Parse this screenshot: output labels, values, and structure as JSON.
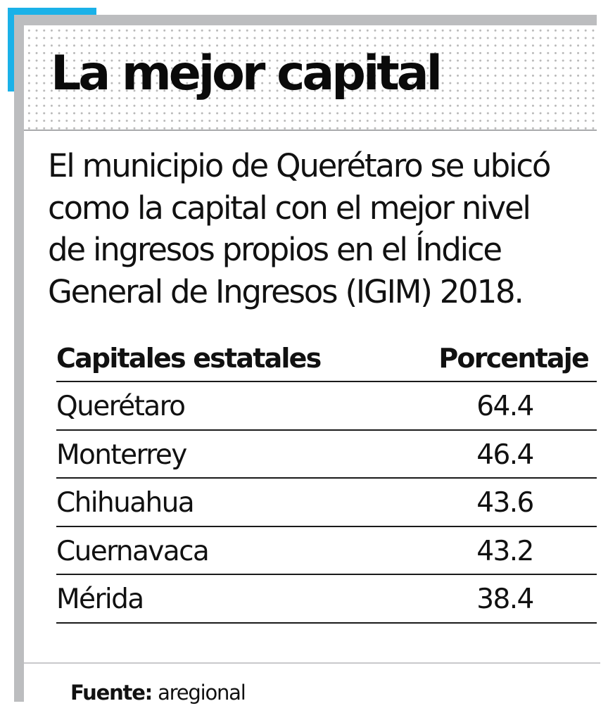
{
  "header": {
    "title": "La mejor capital"
  },
  "intro": {
    "lines": [
      "El municipio de Querétaro se ubicó",
      "como la capital con el mejor nivel",
      "de ingresos propios en el Índice",
      "General de Ingresos (IGIM) 2018."
    ]
  },
  "table": {
    "columns": [
      "Capitales estatales",
      "Porcentaje"
    ],
    "rows": [
      {
        "name": "Querétaro",
        "value": "64.4"
      },
      {
        "name": "Monterrey",
        "value": "46.4"
      },
      {
        "name": "Chihuahua",
        "value": "43.6"
      },
      {
        "name": "Cuernavaca",
        "value": "43.2"
      },
      {
        "name": "Mérida",
        "value": "38.4"
      }
    ]
  },
  "footer": {
    "source_label": "Fuente:",
    "source_value": " aregional"
  },
  "colors": {
    "accent": "#1ab1e8",
    "frame": "#bcbdbf",
    "text": "#111111"
  },
  "chart_data": {
    "type": "table",
    "title": "La mejor capital",
    "subtitle": "El municipio de Querétaro se ubicó como la capital con el mejor nivel de ingresos propios en el Índice General de Ingresos (IGIM) 2018.",
    "columns": [
      "Capitales estatales",
      "Porcentaje"
    ],
    "categories": [
      "Querétaro",
      "Monterrey",
      "Chihuahua",
      "Cuernavaca",
      "Mérida"
    ],
    "values": [
      64.4,
      46.4,
      43.6,
      43.2,
      38.4
    ],
    "source": "Fuente: aregional"
  }
}
